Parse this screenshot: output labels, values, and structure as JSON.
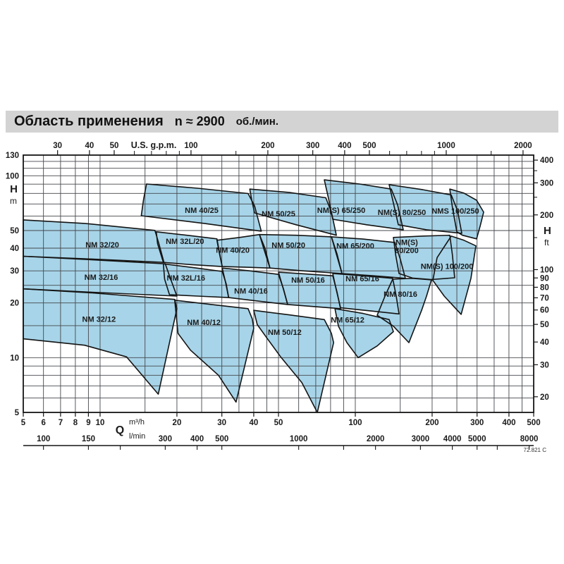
{
  "title": {
    "main": "Область применения",
    "n_approx": "n ≈ 2900",
    "rpm_unit": "об./мин."
  },
  "colors": {
    "region_fill": "#a7d4e8",
    "region_stroke": "#141414",
    "grid": "#45474c",
    "axis": "#141414",
    "text": "#1a1a1a",
    "title_bg": "#d3d3d3"
  },
  "chart_data": {
    "type": "area",
    "title": "Область применения n ≈ 2900 об./мин.",
    "ranges": {
      "q_m3h": [
        5,
        500
      ],
      "h_m": [
        5,
        130
      ]
    },
    "grid": {
      "x_m3h": [
        5,
        6,
        7,
        8,
        9,
        10,
        15,
        20,
        25,
        30,
        35,
        40,
        45,
        50,
        60,
        70,
        80,
        90,
        100,
        150,
        200,
        250,
        300,
        350,
        400,
        450,
        500
      ],
      "y_m": [
        5,
        6,
        7,
        8,
        9,
        10,
        15,
        20,
        25,
        30,
        40,
        50,
        60,
        70,
        80,
        90,
        100,
        110,
        120,
        130
      ]
    },
    "x_axis_top": {
      "unit": "U.S. g.p.m.",
      "labeled": [
        30,
        40,
        50,
        100,
        200,
        300,
        400,
        500,
        1000,
        2000
      ],
      "minor": [
        60,
        70,
        80,
        90,
        150,
        600,
        700,
        800,
        900,
        1500
      ]
    },
    "x_axis_bottom": {
      "q_label": "Q",
      "unit_m3h": "m³/h",
      "unit_lmin": "l/min",
      "m3h_labeled": [
        5,
        6,
        7,
        8,
        9,
        10,
        20,
        30,
        40,
        50,
        100,
        200,
        300,
        400,
        500
      ],
      "lmin_ticks": [
        100,
        150,
        200,
        300,
        400,
        500,
        1000,
        1500,
        2000,
        3000,
        4000,
        5000,
        6000,
        8000
      ],
      "lmin_labeled": [
        100,
        150,
        300,
        400,
        500,
        1000,
        2000,
        3000,
        4000,
        5000,
        8000
      ]
    },
    "y_axis_left": {
      "unit_top": "H",
      "unit_bottom": "m",
      "labeled": [
        130,
        100,
        50,
        40,
        30,
        20,
        10,
        5
      ]
    },
    "y_axis_right": {
      "unit_top": "H",
      "unit_bottom": "ft",
      "labeled": [
        400,
        300,
        200,
        100,
        90,
        80,
        70,
        60,
        50,
        40,
        30,
        20
      ],
      "minor": [
        350,
        250,
        150
      ]
    },
    "footnote": "72.821 C",
    "regions": [
      {
        "name": "NM 32/20",
        "label_at": [
          10.2,
          41.9
        ],
        "points": [
          [
            5,
            57.2
          ],
          [
            8.7,
            54.7
          ],
          [
            16.4,
            50.1
          ],
          [
            17,
            42.3
          ],
          [
            17.8,
            33.4
          ],
          [
            8.7,
            35
          ],
          [
            5,
            36.1
          ]
        ]
      },
      {
        "name": "NM 32/16",
        "label_at": [
          10.1,
          27.7
        ],
        "points": [
          [
            5,
            36.1
          ],
          [
            8.7,
            34.7
          ],
          [
            18,
            32.8
          ],
          [
            18.9,
            27
          ],
          [
            20,
            21.8
          ],
          [
            9.3,
            22.9
          ],
          [
            5,
            23.9
          ]
        ]
      },
      {
        "name": "NM 32/12",
        "label_at": [
          9.9,
          16.3
        ],
        "points": [
          [
            5,
            23.9
          ],
          [
            9.3,
            22.7
          ],
          [
            19.6,
            20.9
          ],
          [
            20,
            18.6
          ],
          [
            16.9,
            6.3
          ],
          [
            12.7,
            10.1
          ],
          [
            8.7,
            11.7
          ],
          [
            5,
            12.7
          ]
        ]
      },
      {
        "name": "NM 32L/20",
        "label_at": [
          21.5,
          43.8
        ],
        "points": [
          [
            16.6,
            49.2
          ],
          [
            21.9,
            47.1
          ],
          [
            28.7,
            45
          ],
          [
            29.3,
            38.4
          ],
          [
            30.1,
            31.7
          ],
          [
            22.6,
            32.5
          ],
          [
            17.7,
            33.4
          ],
          [
            16.8,
            42.3
          ]
        ]
      },
      {
        "name": "NM 32L/16",
        "label_at": [
          21.7,
          27.5
        ],
        "points": [
          [
            17.7,
            32.8
          ],
          [
            22.6,
            31.4
          ],
          [
            30.1,
            29.8
          ],
          [
            31.2,
            25.4
          ],
          [
            31.9,
            21.4
          ],
          [
            24.1,
            21.8
          ],
          [
            18.7,
            22.2
          ],
          [
            17.9,
            27
          ]
        ]
      },
      {
        "name": "NM 40/25",
        "label_at": [
          25,
          64.8
        ],
        "points": [
          [
            15.2,
            90.1
          ],
          [
            24.1,
            85.4
          ],
          [
            38,
            79.9
          ],
          [
            40.3,
            68.3
          ],
          [
            42.8,
            49.6
          ],
          [
            25.6,
            54.7
          ],
          [
            14.5,
            60.3
          ],
          [
            14.8,
            74
          ]
        ]
      },
      {
        "name": "NM 40/20",
        "label_at": [
          33.1,
          39.1
        ],
        "points": [
          [
            28.7,
            44.2
          ],
          [
            35.2,
            45.8
          ],
          [
            42.1,
            47.5
          ],
          [
            44.3,
            39.8
          ],
          [
            46.3,
            31.1
          ],
          [
            37.6,
            31.4
          ],
          [
            30.1,
            31.7
          ],
          [
            29.3,
            37.8
          ]
        ]
      },
      {
        "name": "NM 40/16",
        "label_at": [
          39,
          23.3
        ],
        "points": [
          [
            30.1,
            31.1
          ],
          [
            38.6,
            30
          ],
          [
            50,
            28.7
          ],
          [
            52.3,
            23.9
          ],
          [
            54.3,
            19.6
          ],
          [
            41.3,
            20.5
          ],
          [
            31.9,
            21.4
          ],
          [
            31,
            26.1
          ]
        ]
      },
      {
        "name": "NM 40/12",
        "label_at": [
          25.5,
          15.7
        ],
        "points": [
          [
            19.6,
            20.7
          ],
          [
            27.3,
            19.6
          ],
          [
            38,
            18.6
          ],
          [
            39.5,
            16.3
          ],
          [
            40,
            14.5
          ],
          [
            34.1,
            5.7
          ],
          [
            29.1,
            8
          ],
          [
            22.6,
            11
          ],
          [
            20.2,
            13.6
          ]
        ]
      },
      {
        "name": "NM 50/25",
        "label_at": [
          50,
          61.9
        ],
        "points": [
          [
            38.6,
            84.5
          ],
          [
            55,
            81
          ],
          [
            76.6,
            75.7
          ],
          [
            80.6,
            63.1
          ],
          [
            84.3,
            47.1
          ],
          [
            58.6,
            53.8
          ],
          [
            40.3,
            62.5
          ],
          [
            39.3,
            73.4
          ]
        ]
      },
      {
        "name": "NM 50/20",
        "label_at": [
          54.7,
          41.6
        ],
        "points": [
          [
            42.1,
            47.5
          ],
          [
            58.6,
            47.1
          ],
          [
            80.6,
            46.2
          ],
          [
            84.8,
            37.1
          ],
          [
            88.7,
            29
          ],
          [
            62.5,
            30
          ],
          [
            46.3,
            31.1
          ],
          [
            44,
            38.9
          ]
        ]
      },
      {
        "name": "NM 50/16",
        "label_at": [
          65.3,
          26.8
        ],
        "points": [
          [
            50,
            29.5
          ],
          [
            65.3,
            28.8
          ],
          [
            81.6,
            28.2
          ],
          [
            84.8,
            22.9
          ],
          [
            87.5,
            18.6
          ],
          [
            68.7,
            19.1
          ],
          [
            54.3,
            19.6
          ],
          [
            52.3,
            23.7
          ]
        ]
      },
      {
        "name": "NM 50/12",
        "label_at": [
          52.9,
          13.8
        ],
        "points": [
          [
            40,
            18.2
          ],
          [
            55,
            17.2
          ],
          [
            75.6,
            16.2
          ],
          [
            80.6,
            13.6
          ],
          [
            82.2,
            12.1
          ],
          [
            71,
            5
          ],
          [
            61.7,
            7.3
          ],
          [
            51,
            10.1
          ],
          [
            44.9,
            12.9
          ],
          [
            41.3,
            15.2
          ]
        ]
      },
      {
        "name": "NM(S) 65/250",
        "label_at": [
          88.1,
          64.8
        ],
        "points": [
          [
            75.6,
            95
          ],
          [
            103.9,
            90.1
          ],
          [
            138.3,
            84.5
          ],
          [
            146.5,
            69.1
          ],
          [
            154.1,
            50.5
          ],
          [
            110.7,
            53.8
          ],
          [
            81.6,
            57.7
          ],
          [
            78.6,
            74.7
          ]
        ]
      },
      {
        "name": "NM 65/200",
        "label_at": [
          100,
          41.2
        ],
        "points": [
          [
            80.6,
            46.2
          ],
          [
            107.3,
            44.9
          ],
          [
            142.9,
            43
          ],
          [
            150.3,
            34.6
          ],
          [
            157.1,
            27.3
          ],
          [
            118,
            28.2
          ],
          [
            88.7,
            29
          ],
          [
            84.3,
            37.1
          ]
        ]
      },
      {
        "name": "NM 65/16",
        "label_at": [
          106.6,
          27.3
        ],
        "points": [
          [
            81.6,
            29
          ],
          [
            107.3,
            28.2
          ],
          [
            140.1,
            27.3
          ],
          [
            144.6,
            21.8
          ],
          [
            148.4,
            17.4
          ],
          [
            114.3,
            18.1
          ],
          [
            87.5,
            18.8
          ],
          [
            84.3,
            23.5
          ]
        ]
      },
      {
        "name": "NM 65/12",
        "label_at": [
          93.3,
          16.2
        ],
        "points": [
          [
            83.2,
            18.6
          ],
          [
            107.3,
            17.5
          ],
          [
            135.7,
            16.2
          ],
          [
            141,
            13.9
          ],
          [
            121.8,
            11.6
          ],
          [
            102.6,
            10
          ],
          [
            92.7,
            12.1
          ],
          [
            85.9,
            14.9
          ]
        ]
      },
      {
        "name": "NM(S) 80/250",
        "label_at": [
          152.2,
          63.1
        ],
        "points": [
          [
            135.7,
            89.3
          ],
          [
            184.2,
            83.8
          ],
          [
            237.6,
            78.5
          ],
          [
            251.6,
            64.3
          ],
          [
            261.4,
            48.3
          ],
          [
            190.2,
            50.5
          ],
          [
            147.4,
            53.8
          ],
          [
            141,
            70.9
          ]
        ]
      },
      {
        "name": "NM(S) 80/200",
        "label_at": [
          159.1,
          41
        ],
        "lines": [
          "NM(S)",
          "80/200"
        ],
        "points": [
          [
            141,
            45.8
          ],
          [
            181.9,
            46.6
          ],
          [
            234.6,
            47.1
          ],
          [
            240,
            37
          ],
          [
            245,
            27.5
          ],
          [
            198.8,
            26.9
          ],
          [
            167.5,
            27.4
          ],
          [
            148.4,
            29
          ],
          [
            144,
            36.6
          ]
        ]
      },
      {
        "name": "NM 80/16",
        "label_at": [
          150.3,
          22.4
        ],
        "points": [
          [
            140.1,
            27
          ],
          [
            167.5,
            27.3
          ],
          [
            198.8,
            26.8
          ],
          [
            190.2,
            21.8
          ],
          [
            181.9,
            18.2
          ],
          [
            162.2,
            12.1
          ],
          [
            141,
            14.9
          ],
          [
            121.8,
            17.1
          ],
          [
            130.7,
            21.8
          ]
        ]
      },
      {
        "name": "NMS 100/250",
        "label_at": [
          246.8,
          64.3
        ],
        "points": [
          [
            234.6,
            84.5
          ],
          [
            266.4,
            80.3
          ],
          [
            298.6,
            73.4
          ],
          [
            318.4,
            63.1
          ],
          [
            308.4,
            52.8
          ],
          [
            298.6,
            45
          ],
          [
            263,
            47.1
          ],
          [
            250,
            49.2
          ],
          [
            240.6,
            65.9
          ]
        ]
      },
      {
        "name": "NM(S) 100/200",
        "label_at": [
          228.7,
          31.9
        ],
        "points": [
          [
            237.6,
            46.6
          ],
          [
            266.4,
            44.2
          ],
          [
            296.8,
            41.2
          ],
          [
            283.8,
            27.3
          ],
          [
            259.8,
            17.3
          ],
          [
            223,
            21.8
          ],
          [
            201.4,
            26.6
          ],
          [
            209.2,
            35.5
          ]
        ]
      }
    ]
  }
}
